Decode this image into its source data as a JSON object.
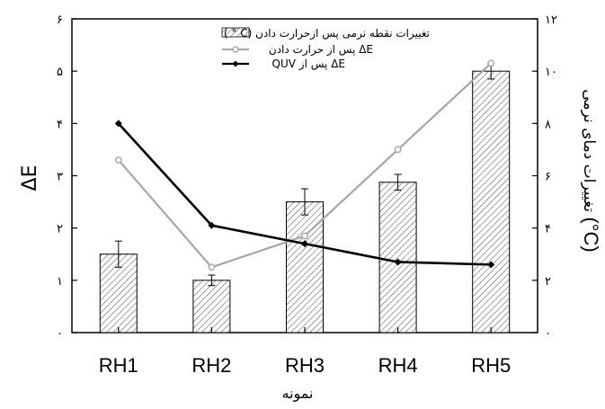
{
  "chart_data": {
    "type": "bar",
    "categories": [
      "RH1",
      "RH2",
      "RH3",
      "RH4",
      "RH5"
    ],
    "xlabel": "نمونه",
    "left_axis": {
      "label": "ΔE",
      "range": [
        0,
        6
      ],
      "ticks": [
        0,
        1,
        2,
        3,
        4,
        5,
        6
      ],
      "tick_labels": [
        "۰",
        "۱",
        "۲",
        "۳",
        "۴",
        "۵",
        "۶"
      ]
    },
    "right_axis": {
      "label": "تغییرات دمای نرمی (°C)",
      "label_main": "تغییرات دمای نرمی ",
      "label_unit": "(°C)",
      "range": [
        0,
        12
      ],
      "ticks": [
        0,
        2,
        4,
        6,
        8,
        10,
        12
      ],
      "tick_labels": [
        "۰",
        "۲",
        "۴",
        "۶",
        "۸",
        "۱۰",
        "۱۲"
      ]
    },
    "series": [
      {
        "name": "تغییرات نقطه نرمی پس ازحرارت دادن (°C)",
        "legend_text": "تغییرات نقطه نرمی پس ازحرارت دادن (C ° )",
        "kind": "bar",
        "axis": "right",
        "values": [
          3.0,
          2.0,
          5.0,
          5.75,
          10.0
        ],
        "errors": [
          0.5,
          0.2,
          0.5,
          0.3,
          0.3
        ],
        "fill": "hatched",
        "color": "#555555"
      },
      {
        "name": "ΔE پس از حرارت دادن",
        "legend_text": "ΔE پس از حرارت دادن",
        "kind": "line",
        "axis": "left",
        "marker": "open-circle",
        "values": [
          3.3,
          1.25,
          1.85,
          3.5,
          5.15
        ],
        "color": "#a6a6a6"
      },
      {
        "name": "ΔE پس از QUV",
        "legend_text": "ΔE پس از QUV",
        "kind": "line",
        "axis": "left",
        "marker": "filled-diamond",
        "values": [
          4.0,
          2.05,
          1.7,
          1.35,
          1.3
        ],
        "color": "#000000"
      }
    ],
    "grid": false,
    "legend_position": "top-center"
  }
}
